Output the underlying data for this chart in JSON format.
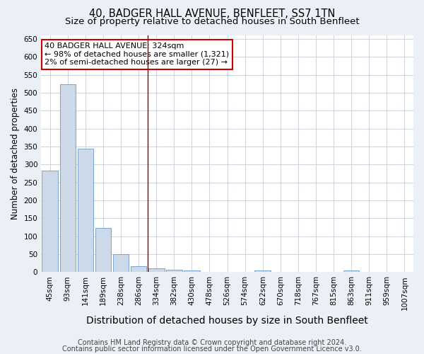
{
  "title": "40, BADGER HALL AVENUE, BENFLEET, SS7 1TN",
  "subtitle": "Size of property relative to detached houses in South Benfleet",
  "xlabel": "Distribution of detached houses by size in South Benfleet",
  "ylabel": "Number of detached properties",
  "categories": [
    "45sqm",
    "93sqm",
    "141sqm",
    "189sqm",
    "238sqm",
    "286sqm",
    "334sqm",
    "382sqm",
    "430sqm",
    "478sqm",
    "526sqm",
    "574sqm",
    "622sqm",
    "670sqm",
    "718sqm",
    "767sqm",
    "815sqm",
    "863sqm",
    "911sqm",
    "959sqm",
    "1007sqm"
  ],
  "values": [
    283,
    524,
    345,
    123,
    49,
    17,
    11,
    6,
    4,
    0,
    0,
    0,
    5,
    0,
    0,
    0,
    0,
    5,
    0,
    0,
    0
  ],
  "bar_color": "#ccd9e8",
  "bar_edge_color": "#6699cc",
  "vline_index": 6,
  "vline_color": "#880000",
  "annotation_line1": "40 BADGER HALL AVENUE: 324sqm",
  "annotation_line2": "← 98% of detached houses are smaller (1,321)",
  "annotation_line3": "2% of semi-detached houses are larger (27) →",
  "annotation_box_color": "#ffffff",
  "annotation_box_edge": "#cc0000",
  "ylim": [
    0,
    660
  ],
  "yticks": [
    0,
    50,
    100,
    150,
    200,
    250,
    300,
    350,
    400,
    450,
    500,
    550,
    600,
    650
  ],
  "footnote1": "Contains HM Land Registry data © Crown copyright and database right 2024.",
  "footnote2": "Contains public sector information licensed under the Open Government Licence v3.0.",
  "background_color": "#eaf0f6",
  "plot_bg_color": "#ffffff",
  "grid_color": "#c5cdd8",
  "title_fontsize": 10.5,
  "subtitle_fontsize": 9.5,
  "xlabel_fontsize": 10,
  "ylabel_fontsize": 8.5,
  "tick_fontsize": 7.5,
  "annot_fontsize": 8,
  "footnote_fontsize": 7
}
